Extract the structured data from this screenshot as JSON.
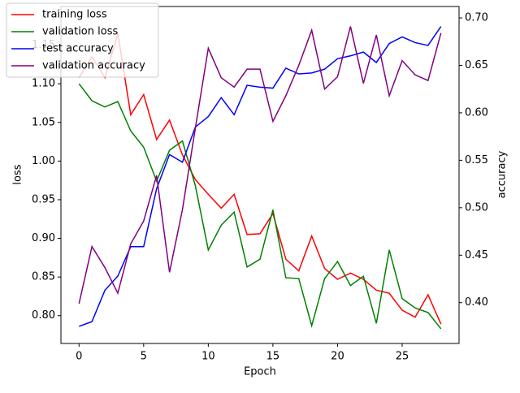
{
  "chart_data": {
    "type": "line",
    "x": [
      0,
      1,
      2,
      3,
      4,
      5,
      6,
      7,
      8,
      9,
      10,
      11,
      12,
      13,
      14,
      15,
      16,
      17,
      18,
      19,
      20,
      21,
      22,
      23,
      24,
      25,
      26,
      27,
      28
    ],
    "xlabel": "Epoch",
    "ylabel": "loss",
    "y2label": "accuracy",
    "y2label_color": "blue",
    "xlim": [
      -1.4,
      29.4
    ],
    "xticks": [
      0,
      5,
      10,
      15,
      20,
      25
    ],
    "ylim": [
      0.764,
      1.2
    ],
    "yticks": [
      {
        "value": 0.8,
        "label": "0.80"
      },
      0.85,
      {
        "value": 0.9,
        "label": "0.90"
      },
      0.95,
      {
        "value": 1.0,
        "label": "1.00"
      },
      1.05,
      {
        "value": 1.1,
        "label": "1.10"
      },
      1.15
    ],
    "y2lim": [
      0.357,
      0.712
    ],
    "y2ticks": [
      {
        "value": 0.4,
        "label": "0.40"
      },
      0.45,
      {
        "value": 0.5,
        "label": "0.50"
      },
      0.55,
      {
        "value": 0.6,
        "label": "0.60"
      },
      0.65,
      {
        "value": 0.7,
        "label": "0.70"
      }
    ],
    "legend": "upper left",
    "series": [
      {
        "name": "training loss",
        "color": "red",
        "axis": "y",
        "values": [
          1.108,
          1.135,
          1.108,
          1.165,
          1.06,
          1.086,
          1.028,
          1.053,
          1.008,
          0.976,
          0.957,
          0.939,
          0.957,
          0.905,
          0.906,
          0.932,
          0.873,
          0.858,
          0.903,
          0.861,
          0.847,
          0.855,
          0.847,
          0.833,
          0.829,
          0.807,
          0.798,
          0.827,
          0.789
        ]
      },
      {
        "name": "validation loss",
        "color": "green",
        "axis": "y",
        "values": [
          1.1,
          1.078,
          1.07,
          1.077,
          1.039,
          1.018,
          0.974,
          1.014,
          1.026,
          0.968,
          0.885,
          0.917,
          0.934,
          0.863,
          0.873,
          0.937,
          0.849,
          0.848,
          0.787,
          0.848,
          0.87,
          0.839,
          0.851,
          0.79,
          0.885,
          0.822,
          0.81,
          0.804,
          0.783
        ]
      },
      {
        "name": "test accuracy",
        "color": "blue",
        "axis": "y2",
        "values": [
          0.375,
          0.38,
          0.413,
          0.428,
          0.459,
          0.459,
          0.52,
          0.556,
          0.548,
          0.585,
          0.596,
          0.616,
          0.598,
          0.629,
          0.627,
          0.626,
          0.647,
          0.641,
          0.642,
          0.646,
          0.657,
          0.66,
          0.664,
          0.653,
          0.673,
          0.68,
          0.674,
          0.671,
          0.691
        ]
      },
      {
        "name": "validation accuracy",
        "color": "purple",
        "axis": "y2",
        "values": [
          0.399,
          0.459,
          0.437,
          0.41,
          0.462,
          0.486,
          0.534,
          0.432,
          0.498,
          0.584,
          0.668,
          0.637,
          0.627,
          0.646,
          0.646,
          0.591,
          0.618,
          0.65,
          0.687,
          0.625,
          0.638,
          0.691,
          0.631,
          0.682,
          0.618,
          0.655,
          0.64,
          0.634,
          0.684
        ]
      }
    ]
  }
}
